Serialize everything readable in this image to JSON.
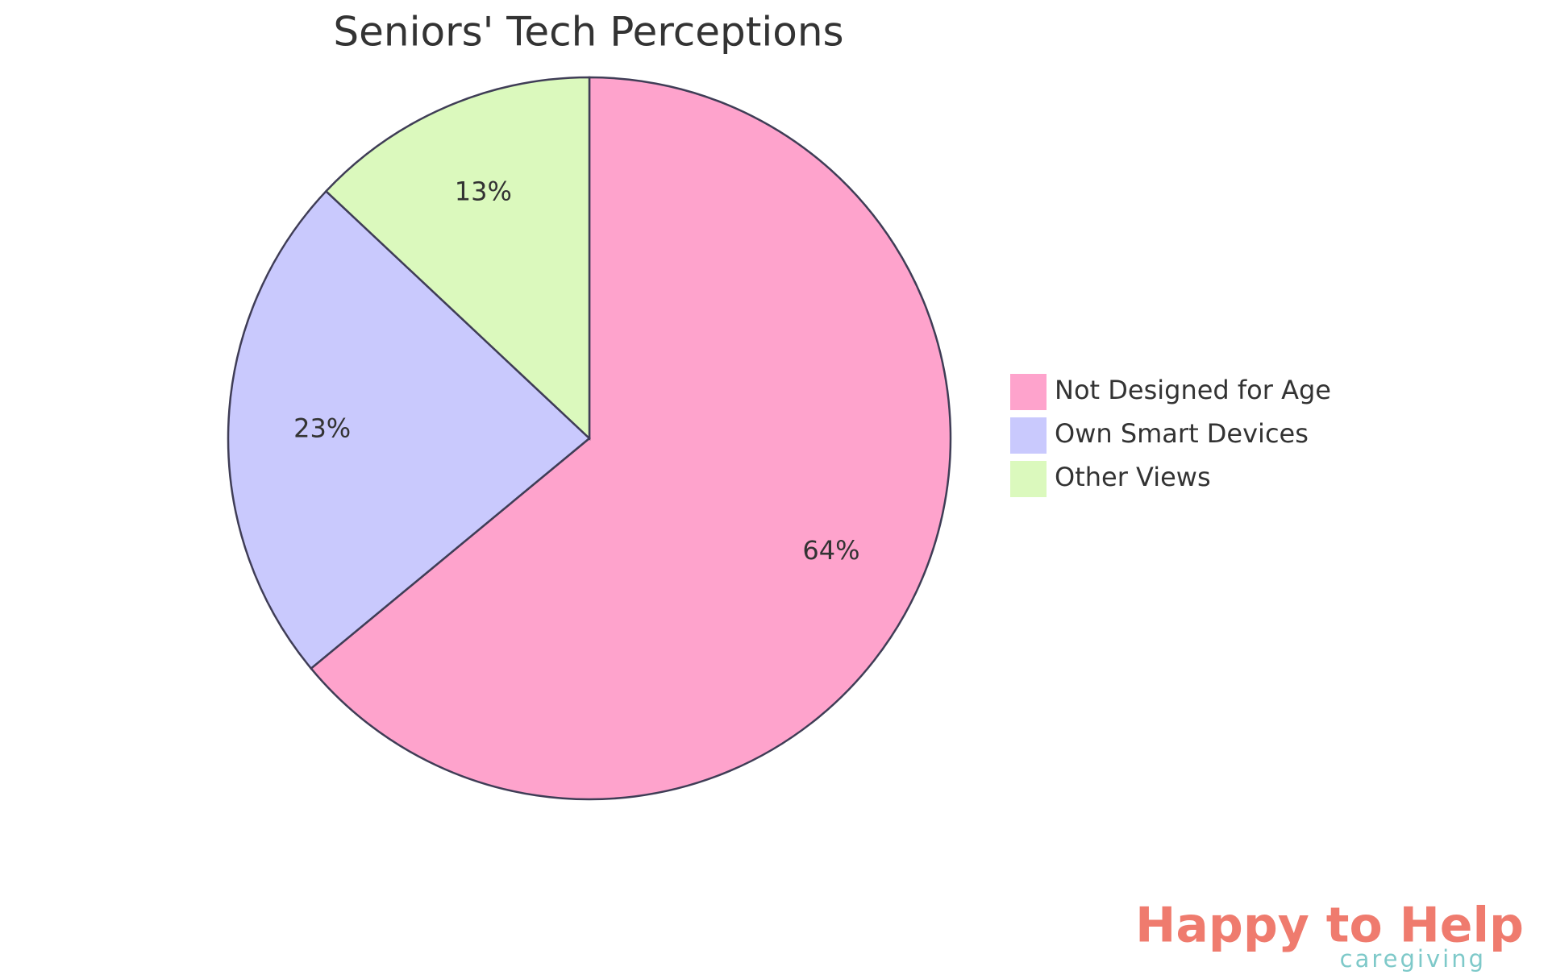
{
  "chart_data": {
    "type": "pie",
    "title": "Seniors' Tech Perceptions",
    "categories": [
      "Not Designed for Age",
      "Own Smart Devices",
      "Other Views"
    ],
    "values": [
      64,
      23,
      13
    ],
    "value_labels": [
      "64%",
      "23%",
      "13%"
    ],
    "colors": [
      "#fea3cc",
      "#c9c9fd",
      "#dbf9bd"
    ],
    "legend": "right"
  },
  "logo": {
    "name": "Happy to Help",
    "tagline": "caregiving"
  }
}
